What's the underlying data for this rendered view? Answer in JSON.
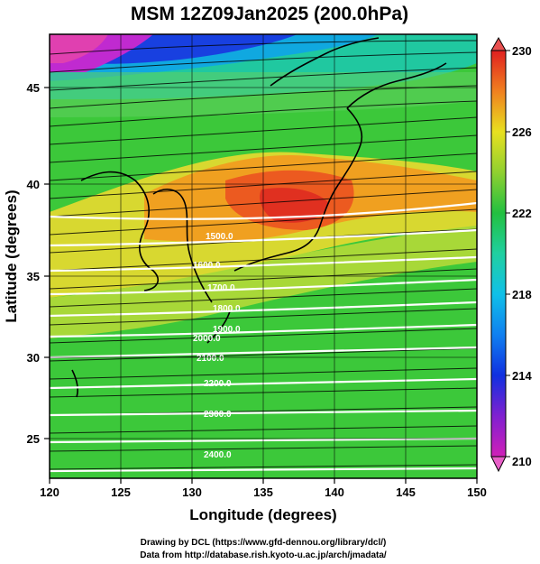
{
  "title": "MSM 12Z09Jan2025 (200.0hPa)",
  "xlabel": "Longitude (degrees)",
  "ylabel": "Latitude  (degrees)",
  "x_ticks": [
    "120",
    "125",
    "130",
    "135",
    "140",
    "145",
    "150"
  ],
  "y_ticks": [
    "25",
    "30",
    "35",
    "40",
    "45"
  ],
  "colorbar_ticks": [
    "230",
    "226",
    "222",
    "218",
    "214",
    "210"
  ],
  "credits": {
    "line1": "Drawing by DCL (https://www.gfd-dennou.org/library/dcl/)",
    "line2": "Data from http://database.rish.kyoto-u.ac.jp/arch/jmadata/"
  },
  "contour_labels": [
    "1500.0",
    "1600.0",
    "1700.0",
    "1800.0",
    "1900.0",
    "2000.0",
    "2100.0",
    "2200.0",
    "2300.0",
    "2400.0"
  ],
  "chart_data": {
    "type": "heatmap",
    "xlim": [
      120,
      150
    ],
    "ylim": [
      22.5,
      47.5
    ],
    "colorbar_range": [
      210,
      230
    ],
    "colorbar_ticks": [
      210,
      214,
      218,
      222,
      226,
      230
    ],
    "field": "temperature (K) shaded, wind streamlines/vectors, white contours",
    "contour_values": [
      1500.0,
      1600.0,
      1700.0,
      1800.0,
      1900.0,
      2000.0,
      2100.0,
      2200.0,
      2300.0,
      2400.0
    ],
    "colors": {
      "low": "#e040c0",
      "mid": "#22c040",
      "high": "#e0202a"
    }
  }
}
